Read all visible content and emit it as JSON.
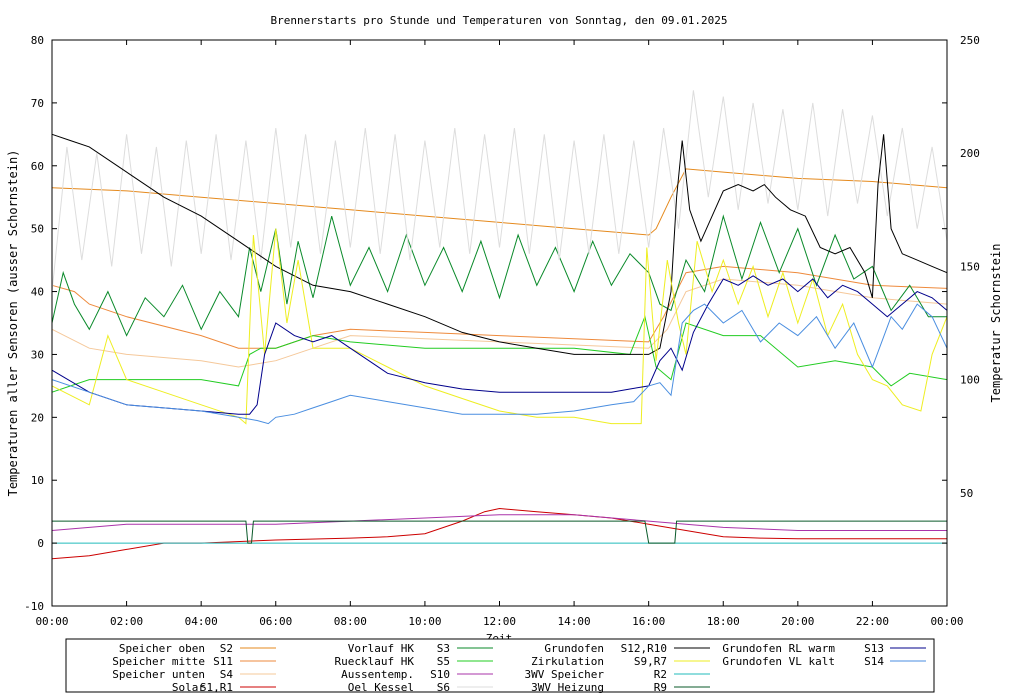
{
  "chart_data": {
    "type": "line",
    "title": "Brennerstarts pro Stunde und Temperaturen von Sonntag, den 09.01.2025",
    "xlabel": "Zeit",
    "ylabel": "Temperaturen aller Sensoren (ausser Schornstein)",
    "y2label": "Temperatur Schornstein",
    "y2label_color": "#ee44ee",
    "grid": false,
    "legend_position": "bottom",
    "x_unit": "hours",
    "xlim": [
      0,
      24
    ],
    "ylim": [
      -10,
      80
    ],
    "y2lim": [
      0,
      250
    ],
    "x_ticks": [
      "00:00",
      "02:00",
      "04:00",
      "06:00",
      "08:00",
      "10:00",
      "12:00",
      "14:00",
      "16:00",
      "18:00",
      "20:00",
      "22:00",
      "00:00"
    ],
    "y_ticks": [
      "-10",
      "0",
      "10",
      "20",
      "30",
      "40",
      "50",
      "60",
      "70",
      "80"
    ],
    "y2_ticks": [
      "50",
      "100",
      "150",
      "200",
      "250"
    ],
    "legend": [
      {
        "label": "Speicher oben",
        "code": "S2",
        "color": "#e58a1e"
      },
      {
        "label": "Speicher mitte",
        "code": "S11",
        "color": "#ee8a3c"
      },
      {
        "label": "Speicher unten",
        "code": "S4",
        "color": "#f5c89a"
      },
      {
        "label": "Solar",
        "code": "S1,R1",
        "color": "#cc0000"
      },
      {
        "label": "Vorlauf HK",
        "code": "S3",
        "color": "#0a8a2a"
      },
      {
        "label": "Ruecklauf HK",
        "code": "S5",
        "color": "#22cc22"
      },
      {
        "label": "Aussentemp.",
        "code": "S10",
        "color": "#aa33aa"
      },
      {
        "label": "Oel Kessel",
        "code": "S6",
        "color": "#dddddd"
      },
      {
        "label": "Grundofen",
        "code": "S12,R10",
        "color": "#000000"
      },
      {
        "label": "Zirkulation",
        "code": "S9,R7",
        "color": "#eeee22"
      },
      {
        "label": "3WV Speicher",
        "code": "R2",
        "color": "#22bbbb"
      },
      {
        "label": "3WV Heizung",
        "code": "R9",
        "color": "#0a5a2a"
      },
      {
        "label": "Grundofen RL warm",
        "code": "S13",
        "color": "#00008b"
      },
      {
        "label": "Grundofen VL kalt",
        "code": "S14",
        "color": "#4a8ee0"
      }
    ],
    "series": [
      {
        "name": "Speicher oben",
        "color": "#e58a1e",
        "x": [
          0,
          2,
          4,
          6,
          8,
          10,
          12,
          14,
          16,
          16.2,
          16.6,
          17,
          18,
          20,
          22,
          24
        ],
        "y": [
          56.5,
          56,
          55,
          54,
          53,
          52,
          51,
          50,
          49,
          50,
          55,
          59.5,
          59,
          58,
          57.5,
          56.5
        ]
      },
      {
        "name": "Speicher mitte",
        "color": "#ee8a3c",
        "x": [
          0,
          0.6,
          1,
          2,
          4,
          5,
          6,
          7,
          8,
          10,
          12,
          14,
          16,
          16.4,
          17,
          18,
          20,
          22,
          24
        ],
        "y": [
          41,
          40,
          38,
          36,
          33,
          31,
          31,
          33,
          34,
          33.5,
          33,
          32.5,
          32,
          36,
          43,
          44,
          43,
          41,
          40.5
        ]
      },
      {
        "name": "Speicher unten",
        "color": "#f5c89a",
        "x": [
          0,
          1,
          2,
          4,
          5,
          6,
          7,
          8,
          10,
          12,
          14,
          16,
          16.5,
          17,
          18,
          20,
          22,
          24
        ],
        "y": [
          34,
          31,
          30,
          29,
          28,
          29,
          31,
          33,
          32.5,
          32,
          31.5,
          31,
          34,
          40,
          42,
          41,
          39,
          38
        ]
      },
      {
        "name": "Solar",
        "color": "#cc0000",
        "x": [
          0,
          1,
          2,
          3,
          4,
          6,
          8,
          9,
          10,
          11,
          11.6,
          12,
          13,
          14,
          15,
          16,
          17,
          18,
          19,
          20,
          22,
          24
        ],
        "y": [
          -2.5,
          -2,
          -1,
          0,
          0,
          0.5,
          0.8,
          1,
          1.5,
          3.5,
          5,
          5.5,
          5,
          4.5,
          4,
          3,
          2,
          1,
          0.8,
          0.7,
          0.7,
          0.7
        ]
      },
      {
        "name": "Vorlauf HK",
        "color": "#0a8a2a",
        "x": [
          0,
          0.3,
          0.6,
          1,
          1.5,
          2,
          2.5,
          3,
          3.5,
          4,
          4.5,
          5,
          5.3,
          5.6,
          6,
          6.3,
          6.6,
          7,
          7.5,
          8,
          8.5,
          9,
          9.5,
          10,
          10.5,
          11,
          11.5,
          12,
          12.5,
          13,
          13.5,
          14,
          14.5,
          15,
          15.5,
          16,
          16.3,
          16.6,
          17,
          17.5,
          18,
          18.5,
          19,
          19.5,
          20,
          20.5,
          21,
          21.5,
          22,
          22.5,
          23,
          23.5,
          24
        ],
        "y": [
          35,
          43,
          38,
          34,
          40,
          33,
          39,
          36,
          41,
          34,
          40,
          36,
          47,
          40,
          50,
          38,
          48,
          39,
          52,
          41,
          47,
          40,
          49,
          41,
          47,
          40,
          48,
          39,
          49,
          41,
          47,
          40,
          48,
          41,
          46,
          43,
          38,
          37,
          45,
          40,
          52,
          42,
          51,
          43,
          50,
          41,
          49,
          42,
          44,
          37,
          41,
          36,
          36
        ]
      },
      {
        "name": "Ruecklauf HK",
        "color": "#22cc22",
        "x": [
          0,
          0.5,
          1,
          2,
          3,
          4,
          5,
          5.3,
          5.6,
          6,
          7,
          8,
          10,
          12,
          14,
          15.5,
          15.9,
          16.2,
          16.6,
          17,
          18,
          19,
          20,
          21,
          22,
          22.5,
          23,
          24
        ],
        "y": [
          24,
          25,
          26,
          26,
          26,
          26,
          25,
          30,
          31,
          31,
          33,
          32,
          31,
          31,
          31,
          30,
          36,
          28,
          26,
          35,
          33,
          33,
          28,
          29,
          28,
          25,
          27,
          26
        ]
      },
      {
        "name": "Aussentemp.",
        "color": "#aa33aa",
        "x": [
          0,
          2,
          4,
          6,
          8,
          10,
          12,
          14,
          16,
          17,
          18,
          20,
          22,
          24
        ],
        "y": [
          2,
          3,
          3,
          3,
          3.5,
          4,
          4.5,
          4.5,
          3.5,
          3,
          2.5,
          2,
          2,
          2
        ]
      },
      {
        "name": "Oel Kessel",
        "color": "#dddddd",
        "x": [
          0,
          0.4,
          0.8,
          1.2,
          1.6,
          2,
          2.4,
          2.8,
          3.2,
          3.6,
          4,
          4.4,
          4.8,
          5.2,
          5.6,
          6,
          6.4,
          6.8,
          7.2,
          7.6,
          8,
          8.4,
          8.8,
          9.2,
          9.6,
          10,
          10.4,
          10.8,
          11.2,
          11.6,
          12,
          12.4,
          12.8,
          13.2,
          13.6,
          14,
          14.4,
          14.8,
          15.2,
          15.6,
          16,
          16.4,
          16.8,
          17.2,
          17.6,
          18,
          18.4,
          18.8,
          19.2,
          19.6,
          20,
          20.4,
          20.8,
          21.2,
          21.6,
          22,
          22.4,
          22.8,
          23.2,
          23.6,
          24
        ],
        "y": [
          40,
          63,
          45,
          62,
          44,
          65,
          46,
          63,
          44,
          64,
          46,
          65,
          45,
          64,
          45,
          66,
          47,
          65,
          46,
          64,
          47,
          66,
          46,
          65,
          45,
          64,
          47,
          66,
          46,
          65,
          47,
          66,
          46,
          65,
          45,
          64,
          46,
          65,
          46,
          64,
          47,
          66,
          50,
          72,
          55,
          71,
          53,
          70,
          54,
          69,
          53,
          70,
          52,
          69,
          54,
          68,
          52,
          66,
          50,
          63,
          48
        ]
      },
      {
        "name": "Grundofen",
        "color": "#000000",
        "x": [
          0,
          0.5,
          1,
          2,
          3,
          4,
          5,
          6,
          7,
          8,
          9,
          10,
          11,
          12,
          13,
          14,
          15,
          15.5,
          16,
          16.3,
          16.6,
          16.75,
          16.9,
          17.1,
          17.4,
          17.7,
          18,
          18.4,
          18.8,
          19.1,
          19.4,
          19.8,
          20.2,
          20.6,
          21,
          21.4,
          21.8,
          22,
          22.15,
          22.3,
          22.5,
          22.8,
          23.2,
          23.6,
          24
        ],
        "y": [
          65,
          64,
          63,
          59,
          55,
          52,
          48,
          44,
          41,
          40,
          38,
          36,
          33.5,
          32,
          31,
          30,
          30,
          30,
          30,
          31,
          40,
          55,
          64,
          53,
          48,
          52,
          56,
          57,
          56,
          57,
          55,
          53,
          52,
          47,
          46,
          47,
          43,
          39,
          57,
          65,
          50,
          46,
          45,
          44,
          43
        ]
      },
      {
        "name": "Zirkulation",
        "color": "#eeee22",
        "x": [
          0,
          1,
          1.5,
          2,
          3,
          4,
          5,
          5.2,
          5.4,
          5.7,
          6,
          6.3,
          6.6,
          7,
          8,
          9,
          10,
          11,
          12,
          13,
          14,
          15,
          15.8,
          15.95,
          16.2,
          16.5,
          16.8,
          17,
          17.3,
          17.7,
          18,
          18.4,
          18.8,
          19.2,
          19.6,
          20,
          20.4,
          20.8,
          21.2,
          21.6,
          22,
          22.4,
          22.8,
          23.3,
          23.6,
          24
        ],
        "y": [
          25,
          22,
          33,
          26,
          24,
          22,
          20,
          19,
          49,
          30,
          50,
          35,
          45,
          31,
          31,
          28,
          25,
          23,
          21,
          20,
          20,
          19,
          19,
          47,
          29,
          45,
          35,
          30,
          48,
          40,
          45,
          38,
          44,
          36,
          43,
          35,
          42,
          33,
          38,
          30,
          26,
          25,
          22,
          21,
          30,
          36
        ]
      },
      {
        "name": "3WV Speicher",
        "color": "#22bbbb",
        "x": [
          0,
          24
        ],
        "y": [
          0,
          0
        ]
      },
      {
        "name": "3WV Heizung",
        "color": "#0a5a2a",
        "x": [
          0,
          5.2,
          5.25,
          5.35,
          5.4,
          15.9,
          16,
          16.05,
          16.7,
          16.75,
          24
        ],
        "y": [
          3.5,
          3.5,
          0,
          0,
          3.5,
          3.5,
          0,
          0,
          0,
          3.5,
          3.5
        ]
      },
      {
        "name": "Grundofen RL warm",
        "color": "#00008b",
        "x": [
          0,
          1,
          2,
          3,
          4,
          5,
          5.3,
          5.5,
          5.7,
          6,
          6.5,
          7,
          7.5,
          8,
          9,
          10,
          11,
          12,
          13,
          14,
          15,
          15.5,
          16,
          16.3,
          16.6,
          16.9,
          17.2,
          17.6,
          18,
          18.4,
          18.8,
          19.2,
          19.6,
          20,
          20.4,
          20.8,
          21.2,
          21.6,
          22,
          22.4,
          22.8,
          23.2,
          23.6,
          24
        ],
        "y": [
          27.5,
          24,
          22,
          21.5,
          21,
          20.5,
          20.5,
          22,
          30,
          35,
          33,
          32,
          33,
          31,
          27,
          25.5,
          24.5,
          24,
          24,
          24,
          24,
          24.5,
          25,
          29,
          31,
          27.5,
          33.5,
          38,
          42,
          41,
          42.5,
          41,
          42,
          40,
          42,
          39,
          41,
          40,
          38,
          36,
          38,
          40,
          39,
          37
        ]
      },
      {
        "name": "Grundofen VL kalt",
        "color": "#4a8ee0",
        "x": [
          0,
          1,
          2,
          3,
          4,
          5,
          5.5,
          5.8,
          6,
          6.5,
          7,
          7.5,
          8,
          9,
          10,
          11,
          12,
          13,
          14,
          15,
          15.6,
          16,
          16.3,
          16.6,
          16.9,
          17.2,
          17.5,
          18,
          18.5,
          19,
          19.5,
          20,
          20.5,
          21,
          21.5,
          22,
          22.5,
          22.8,
          23.2,
          23.6,
          24
        ],
        "y": [
          26,
          24,
          22,
          21.5,
          21,
          20,
          19.5,
          19,
          20,
          20.5,
          21.5,
          22.5,
          23.5,
          22.5,
          21.5,
          20.5,
          20.5,
          20.5,
          21,
          22,
          22.5,
          25,
          25.5,
          23.5,
          35,
          37,
          38,
          35,
          37,
          32,
          35,
          33,
          36,
          31,
          35,
          28,
          36,
          34,
          38,
          36,
          31
        ]
      }
    ]
  }
}
